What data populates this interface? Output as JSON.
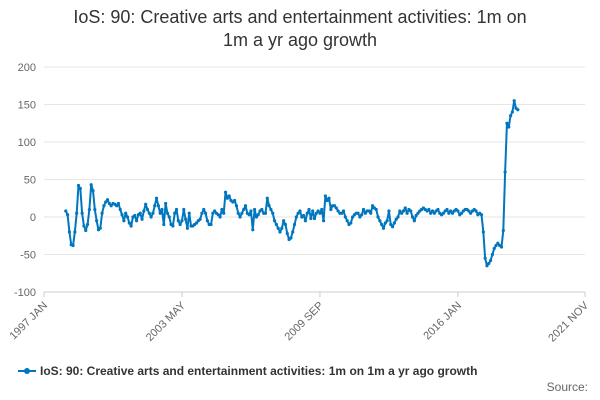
{
  "chart_data": {
    "type": "line",
    "title_lines": [
      "IoS: 90: Creative arts and entertainment activities: 1m on",
      "1m a yr ago growth"
    ],
    "xlabel": "",
    "ylabel": "",
    "ylim": [
      -100,
      200
    ],
    "yticks": [
      -100,
      -50,
      0,
      50,
      100,
      150,
      200
    ],
    "x_ticks": [
      "1997 JAN",
      "2003 MAY",
      "2009 SEP",
      "2016 JAN",
      "2021 NOV"
    ],
    "x_tick_positions": [
      0,
      76,
      152,
      228,
      298
    ],
    "grid": true,
    "legend_position": "bottom",
    "source_label": "Source:",
    "series": [
      {
        "name": "IoS: 90: Creative arts and entertainment activities: 1m on 1m a yr ago growth",
        "color": "#0076be",
        "x_index_start": 12,
        "values": [
          8,
          3,
          -20,
          -37,
          -38,
          -20,
          5,
          42,
          38,
          5,
          -12,
          -18,
          -10,
          10,
          43,
          35,
          10,
          -5,
          -17,
          -15,
          5,
          15,
          20,
          23,
          18,
          15,
          18,
          17,
          15,
          18,
          10,
          3,
          -5,
          5,
          0,
          -8,
          -12,
          0,
          2,
          -5,
          3,
          5,
          -3,
          8,
          17,
          10,
          5,
          0,
          5,
          15,
          25,
          15,
          5,
          10,
          -10,
          18,
          5,
          0,
          -10,
          -12,
          5,
          10,
          -5,
          -10,
          -5,
          10,
          -3,
          -15,
          5,
          -12,
          -12,
          -10,
          -8,
          -5,
          -3,
          5,
          10,
          5,
          -5,
          -10,
          -10,
          5,
          8,
          5,
          3,
          0,
          10,
          5,
          33,
          25,
          28,
          22,
          20,
          22,
          15,
          5,
          0,
          5,
          10,
          15,
          5,
          3,
          8,
          -17,
          10,
          0,
          3,
          8,
          10,
          5,
          5,
          25,
          15,
          10,
          5,
          -5,
          -10,
          -15,
          -20,
          -15,
          -5,
          -10,
          -22,
          -30,
          -28,
          -20,
          -10,
          0,
          5,
          8,
          0,
          2,
          -5,
          5,
          10,
          -2,
          8,
          -2,
          5,
          8,
          5,
          10,
          -5,
          28,
          22,
          25,
          10,
          15,
          15,
          12,
          8,
          5,
          5,
          8,
          0,
          -5,
          -10,
          -8,
          0,
          3,
          5,
          5,
          0,
          3,
          10,
          5,
          8,
          8,
          5,
          15,
          12,
          10,
          0,
          -5,
          -10,
          -15,
          -8,
          -5,
          8,
          -10,
          -13,
          -8,
          -3,
          0,
          8,
          5,
          8,
          12,
          5,
          10,
          8,
          0,
          -5,
          2,
          5,
          8,
          10,
          12,
          10,
          8,
          10,
          5,
          8,
          5,
          8,
          10,
          5,
          3,
          5,
          8,
          10,
          5,
          8,
          5,
          8,
          10,
          8,
          3,
          5,
          8,
          10,
          10,
          8,
          5,
          8,
          10,
          8,
          3,
          5,
          3,
          -20,
          -55,
          -65,
          -62,
          -58,
          -50,
          -42,
          -38,
          -35,
          -38,
          -40,
          -18,
          60,
          125,
          120,
          135,
          140,
          155,
          145,
          143
        ]
      }
    ]
  }
}
